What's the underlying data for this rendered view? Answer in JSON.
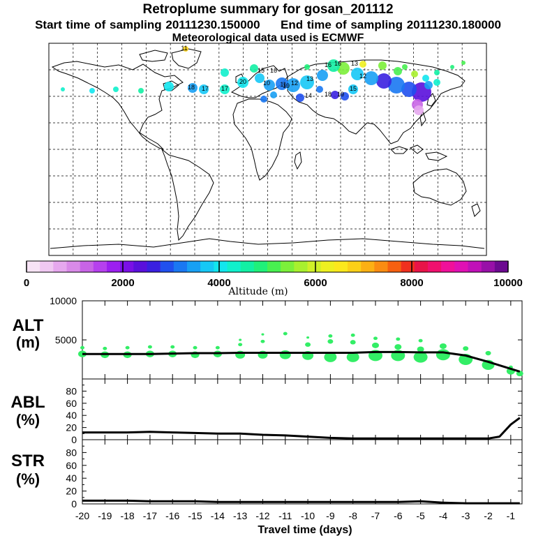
{
  "header": {
    "title": "Retroplume summary for gosan_201112",
    "start_label": "Start time of sampling",
    "start_value": "20111230.150000",
    "end_label": "End time of sampling",
    "end_value": "20111230.180000",
    "met": "Meteorological data used is ECMWF"
  },
  "colors": {
    "marker": "#33ee66",
    "line": "#000000",
    "palette": [
      "#f7e3f5",
      "#f0c8f2",
      "#e6a8ee",
      "#d98ae8",
      "#c864e6",
      "#b640ee",
      "#9c1ff0",
      "#7a10e6",
      "#5a10dc",
      "#3a20e0",
      "#2050ee",
      "#1a78f2",
      "#18a0f4",
      "#16c8f6",
      "#12e6ee",
      "#10f0cc",
      "#12f0a4",
      "#20f07a",
      "#48f050",
      "#7cf03a",
      "#a8f02e",
      "#d0f028",
      "#eef020",
      "#fce81c",
      "#fcd018",
      "#fcb014",
      "#fa8c12",
      "#f66010",
      "#f0301e",
      "#e81448",
      "#f0106e",
      "#f0109a",
      "#e010b4",
      "#c010b8",
      "#9810a8",
      "#6c0a90"
    ]
  },
  "colorbar": {
    "ticks": [
      "0",
      "2000",
      "4000",
      "6000",
      "8000",
      "10000"
    ],
    "label": "Altitude (m)"
  },
  "map": {
    "plume_labels": [
      "11",
      "15",
      "16",
      "13",
      "12",
      "10",
      "19",
      "18",
      "17",
      "20",
      "14",
      "15",
      "16",
      "18",
      "19",
      "11",
      "13",
      "12",
      "17",
      "16"
    ]
  },
  "chart_data": [
    {
      "type": "line",
      "name": "ALT",
      "ylabel_line1": "ALT",
      "ylabel_line2": "(m)",
      "ytick_labels": [
        "5000",
        "10000"
      ],
      "ylim": [
        0,
        10000
      ],
      "x": [
        -20,
        -19,
        -18,
        -17,
        -16,
        -15,
        -14,
        -13,
        -12,
        -11,
        -10,
        -9,
        -8,
        -7,
        -6,
        -5,
        -4,
        -3,
        -2,
        -1,
        -0.6
      ],
      "values": [
        3200,
        3200,
        3200,
        3200,
        3250,
        3300,
        3300,
        3350,
        3350,
        3350,
        3350,
        3350,
        3350,
        3450,
        3450,
        3400,
        3400,
        3000,
        2200,
        1300,
        950
      ],
      "markers": {
        "x": [
          -20,
          -20,
          -19,
          -19,
          -18,
          -18,
          -17,
          -17,
          -16,
          -16,
          -15,
          -15,
          -14,
          -14,
          -13,
          -13,
          -13,
          -12,
          -12,
          -12,
          -11,
          -11,
          -10,
          -10,
          -10,
          -9,
          -9,
          -9,
          -8,
          -8,
          -8,
          -7,
          -7,
          -7,
          -6,
          -6,
          -6,
          -5,
          -5,
          -5,
          -4,
          -4,
          -3,
          -3,
          -2,
          -2,
          -1,
          -1,
          -0.6
        ],
        "y": [
          3200,
          4000,
          3100,
          3900,
          3100,
          4000,
          3200,
          4100,
          3200,
          4100,
          3100,
          4000,
          3200,
          4000,
          3100,
          4400,
          5000,
          3100,
          4800,
          5700,
          3100,
          5800,
          3000,
          4400,
          5300,
          2800,
          4800,
          5500,
          2800,
          4700,
          5600,
          3000,
          4300,
          5200,
          3000,
          4100,
          5100,
          2800,
          3800,
          4900,
          3100,
          4200,
          2500,
          3900,
          1800,
          3300,
          1000,
          1500,
          700
        ],
        "size": [
          6,
          3,
          6,
          3,
          6,
          3,
          6,
          3,
          6,
          3,
          6,
          3,
          6,
          3,
          7,
          3,
          2,
          7,
          3,
          2,
          8,
          3,
          8,
          4,
          2,
          9,
          4,
          3,
          9,
          4,
          3,
          10,
          5,
          3,
          10,
          5,
          3,
          10,
          5,
          3,
          10,
          5,
          10,
          4,
          9,
          4,
          6,
          3,
          5
        ]
      }
    },
    {
      "type": "line",
      "name": "ABL",
      "ylabel_line1": "ABL",
      "ylabel_line2": "(%)",
      "ytick_labels": [
        "0",
        "20",
        "40",
        "60",
        "80"
      ],
      "ylim": [
        0,
        100
      ],
      "x": [
        -20,
        -19,
        -18,
        -17,
        -16,
        -15,
        -14,
        -13,
        -12,
        -11,
        -10,
        -9,
        -8,
        -7,
        -6,
        -5,
        -4,
        -3,
        -2,
        -1.5,
        -1,
        -0.6
      ],
      "values": [
        12,
        12,
        12,
        13,
        12,
        11,
        10,
        10,
        8,
        7,
        5,
        3,
        2,
        2,
        2,
        2,
        2,
        2,
        2,
        5,
        25,
        36
      ]
    },
    {
      "type": "line",
      "name": "STR",
      "ylabel_line1": "STR",
      "ylabel_line2": "(%)",
      "ytick_labels": [
        "0",
        "20",
        "40",
        "60",
        "80"
      ],
      "ylim": [
        0,
        100
      ],
      "x": [
        -20,
        -19,
        -18,
        -17,
        -16,
        -15,
        -14,
        -13,
        -12,
        -11,
        -10,
        -9,
        -8,
        -7,
        -6,
        -5,
        -4,
        -3,
        -2,
        -1,
        -0.6
      ],
      "values": [
        5,
        5,
        5,
        4,
        4,
        4,
        3,
        3,
        3,
        3,
        3,
        3,
        3,
        3,
        3,
        4,
        2,
        1,
        1,
        1,
        1
      ]
    }
  ],
  "xaxis": {
    "tick_labels": [
      "-20",
      "-19",
      "-18",
      "-17",
      "-16",
      "-15",
      "-14",
      "-13",
      "-12",
      "-11",
      "-10",
      "-9",
      "-8",
      "-7",
      "-6",
      "-5",
      "-4",
      "-3",
      "-2",
      "-1"
    ],
    "label": "Travel time (days)"
  }
}
